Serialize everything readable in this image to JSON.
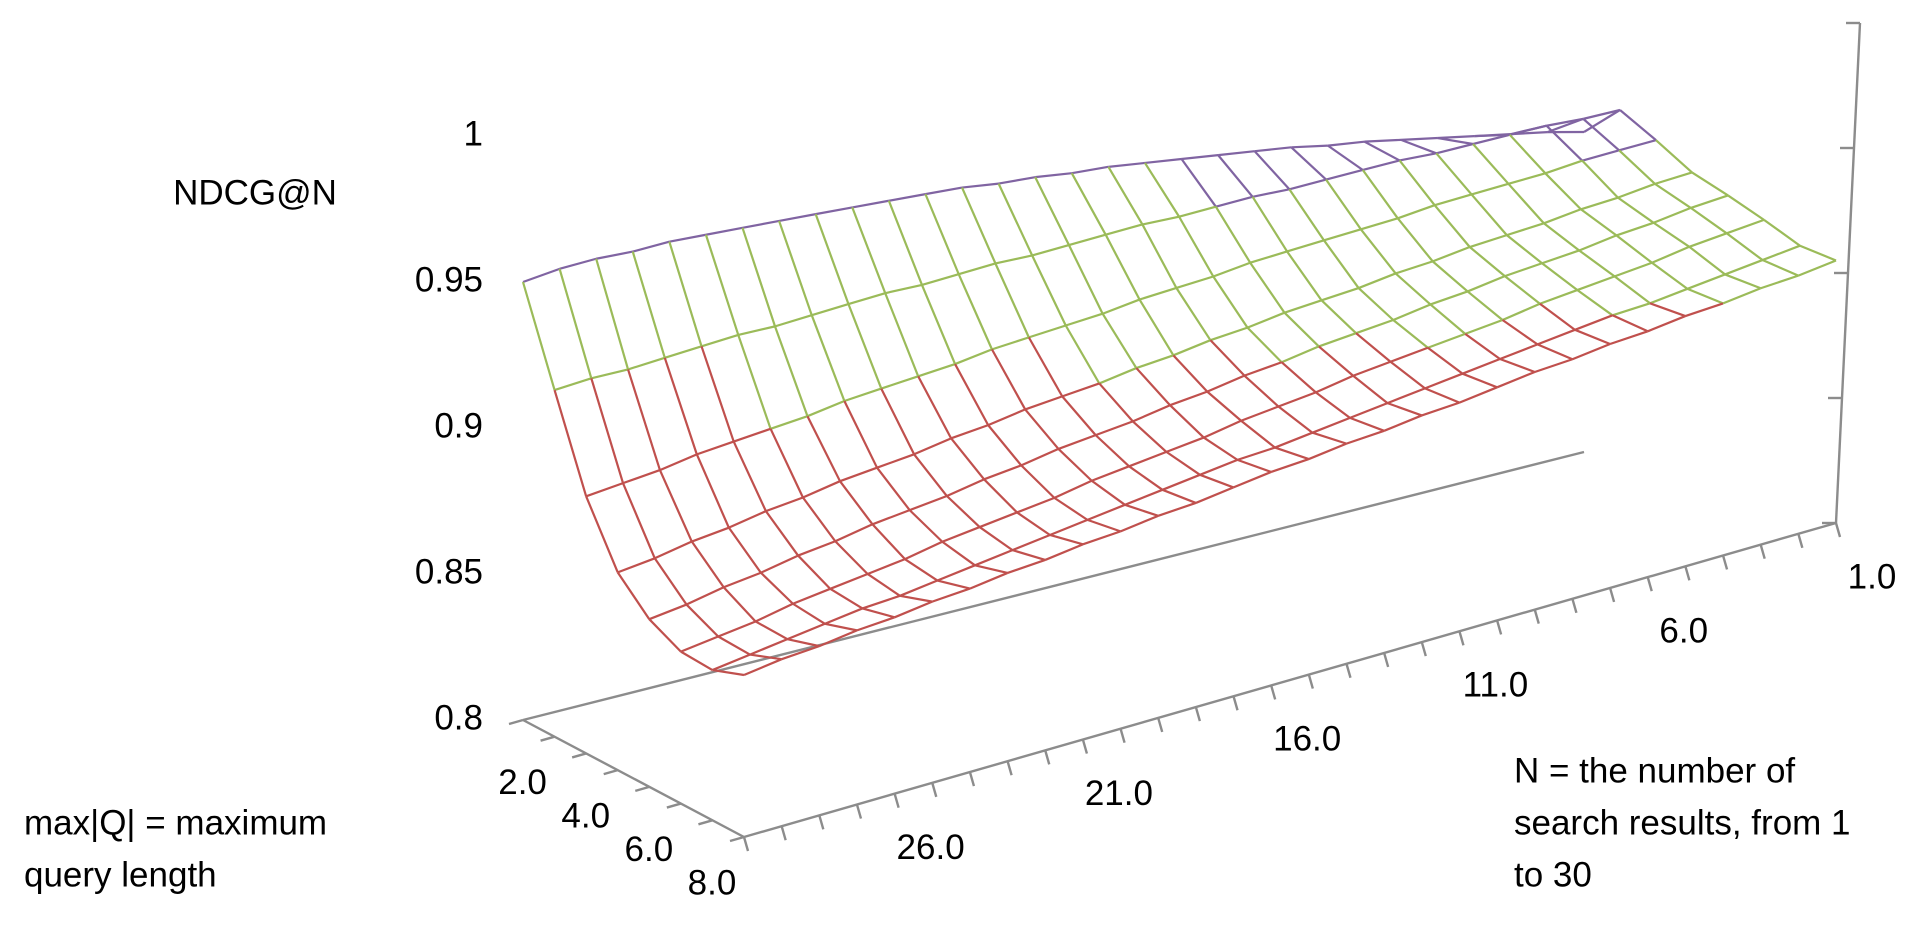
{
  "chart_data": {
    "type": "surface",
    "y_label": "NDCG@N",
    "depth_label_lines": [
      "max|Q| = maximum",
      "query length"
    ],
    "x_label_lines": [
      "N = the number of",
      "search results, from 1",
      "to 30"
    ],
    "categories": [
      "1.0",
      null,
      null,
      null,
      null,
      "6.0",
      null,
      null,
      null,
      null,
      "11.0",
      null,
      null,
      null,
      null,
      "16.0",
      null,
      null,
      null,
      null,
      "21.0",
      null,
      null,
      null,
      null,
      "26.0",
      null,
      null,
      null,
      null
    ],
    "depth_categories": [
      null,
      "2.0",
      null,
      "4.0",
      null,
      "6.0",
      null,
      "8.0"
    ],
    "values": [
      [
        0.96,
        0.962,
        0.963,
        0.964,
        0.965,
        0.966,
        0.967,
        0.967,
        0.968,
        0.968,
        0.968,
        0.968,
        0.968,
        0.968,
        0.967,
        0.967,
        0.966,
        0.966,
        0.965,
        0.964,
        0.963,
        0.962,
        0.961,
        0.96,
        0.959,
        0.958,
        0.956,
        0.955,
        0.953,
        0.95
      ],
      [
        0.97,
        0.968,
        0.967,
        0.965,
        0.963,
        0.961,
        0.96,
        0.958,
        0.956,
        0.954,
        0.953,
        0.951,
        0.949,
        0.948,
        0.946,
        0.944,
        0.942,
        0.941,
        0.939,
        0.937,
        0.936,
        0.934,
        0.932,
        0.93,
        0.929,
        0.927,
        0.925,
        0.923,
        0.922,
        0.92
      ],
      [
        0.955,
        0.953,
        0.951,
        0.948,
        0.946,
        0.944,
        0.942,
        0.939,
        0.937,
        0.935,
        0.933,
        0.931,
        0.928,
        0.926,
        0.924,
        0.921,
        0.919,
        0.917,
        0.915,
        0.912,
        0.91,
        0.908,
        0.906,
        0.903,
        0.901,
        0.899,
        0.897,
        0.894,
        0.892,
        0.89
      ],
      [
        0.94,
        0.938,
        0.935,
        0.933,
        0.93,
        0.928,
        0.926,
        0.923,
        0.921,
        0.918,
        0.916,
        0.914,
        0.911,
        0.909,
        0.906,
        0.904,
        0.901,
        0.899,
        0.897,
        0.894,
        0.892,
        0.889,
        0.887,
        0.885,
        0.882,
        0.88,
        0.877,
        0.875,
        0.872,
        0.87
      ],
      [
        0.93,
        0.928,
        0.925,
        0.923,
        0.92,
        0.918,
        0.916,
        0.913,
        0.911,
        0.908,
        0.906,
        0.904,
        0.901,
        0.899,
        0.896,
        0.894,
        0.891,
        0.889,
        0.887,
        0.884,
        0.882,
        0.879,
        0.877,
        0.875,
        0.872,
        0.87,
        0.867,
        0.865,
        0.862,
        0.86
      ],
      [
        0.92,
        0.918,
        0.916,
        0.913,
        0.911,
        0.909,
        0.907,
        0.904,
        0.902,
        0.9,
        0.898,
        0.896,
        0.893,
        0.891,
        0.889,
        0.886,
        0.884,
        0.882,
        0.88,
        0.877,
        0.875,
        0.873,
        0.871,
        0.868,
        0.866,
        0.864,
        0.862,
        0.859,
        0.857,
        0.855
      ],
      [
        0.91,
        0.908,
        0.906,
        0.904,
        0.902,
        0.901,
        0.899,
        0.897,
        0.895,
        0.893,
        0.891,
        0.889,
        0.887,
        0.885,
        0.883,
        0.882,
        0.88,
        0.878,
        0.876,
        0.874,
        0.872,
        0.87,
        0.868,
        0.866,
        0.864,
        0.863,
        0.861,
        0.859,
        0.857,
        0.855
      ],
      [
        0.905,
        0.903,
        0.902,
        0.9,
        0.899,
        0.897,
        0.896,
        0.894,
        0.893,
        0.891,
        0.889,
        0.888,
        0.886,
        0.885,
        0.883,
        0.882,
        0.88,
        0.878,
        0.877,
        0.875,
        0.874,
        0.872,
        0.871,
        0.869,
        0.868,
        0.866,
        0.865,
        0.863,
        0.862,
        0.86
      ]
    ],
    "ylim": [
      0.8,
      1
    ],
    "yticks": [
      0.8,
      0.85,
      0.9,
      0.95,
      1
    ],
    "band_colors": [
      "#4f81bd",
      "#c0504d",
      "#9bbb59",
      "#8064a2"
    ]
  }
}
